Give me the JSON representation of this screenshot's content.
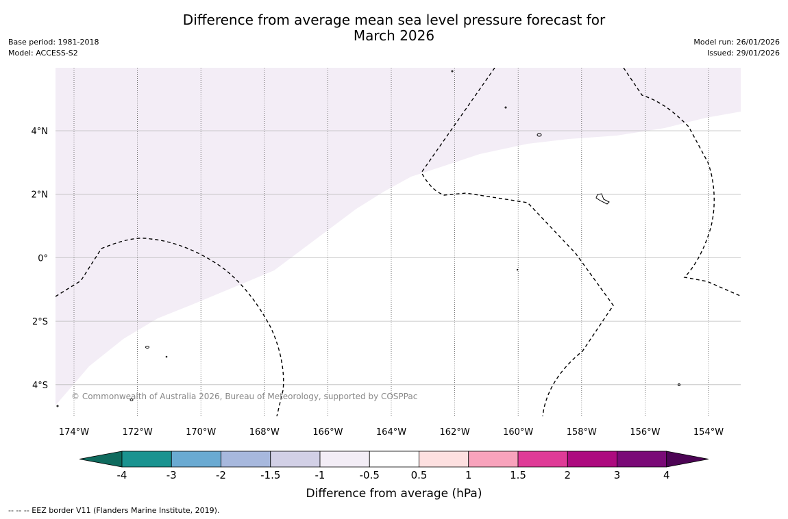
{
  "title_line1": "Difference from average mean sea level pressure forecast for",
  "title_line2": "March 2026",
  "meta_left": {
    "base_period": "Base period: 1981-2018",
    "model": "Model: ACCESS-S2"
  },
  "meta_right": {
    "model_run": "Model run: 26/01/2026",
    "issued": "Issued: 29/01/2026"
  },
  "copyright": "© Commonwealth of Australia 2026, Bureau of Meteorology, supported by COSPPac",
  "footnote": "--  --  -- EEZ border V11 (Flanders Marine Institute, 2019).",
  "map": {
    "lon_ticks": [
      "174°W",
      "172°W",
      "170°W",
      "168°W",
      "166°W",
      "164°W",
      "162°W",
      "160°W",
      "158°W",
      "156°W",
      "154°W"
    ],
    "lat_ticks": [
      "4°N",
      "2°N",
      "0°",
      "2°S",
      "4°S"
    ],
    "anomaly_region_color": "#f3edf6",
    "anomaly_region_category": "-1 to -0.5 hPa"
  },
  "colorbar": {
    "title": "Difference from average (hPa)",
    "tick_labels": [
      "-4",
      "-3",
      "-2",
      "-1.5",
      "-1",
      "-0.5",
      "0.5",
      "1",
      "1.5",
      "2",
      "3",
      "4"
    ],
    "colors": [
      "#0f6b5e",
      "#1a9390",
      "#6aaad2",
      "#a7b8dd",
      "#d2d0e6",
      "#f3edf6",
      "#ffffff",
      "#fde0e0",
      "#f8a3bc",
      "#df3b97",
      "#ad0b7f",
      "#7a0a77",
      "#4d0455"
    ]
  }
}
